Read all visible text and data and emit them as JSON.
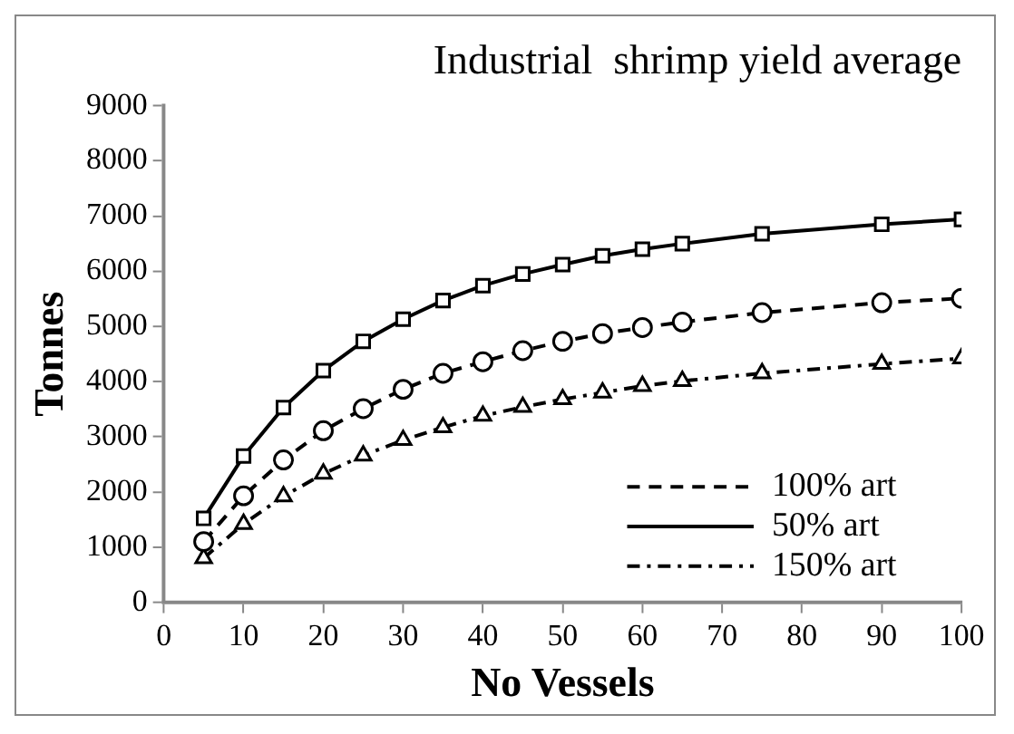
{
  "chart_data": {
    "type": "line",
    "title": "Industrial  shrimp yield average",
    "xlabel": "No Vessels",
    "ylabel": "Tonnes",
    "x": [
      5,
      10,
      15,
      20,
      25,
      30,
      35,
      40,
      45,
      50,
      55,
      60,
      65,
      75,
      90,
      100
    ],
    "series": [
      {
        "name": "100% art",
        "color": "#000000",
        "marker": "circle",
        "line_style": "dashed",
        "values": [
          1100,
          1930,
          2580,
          3110,
          3510,
          3860,
          4150,
          4360,
          4560,
          4730,
          4870,
          4980,
          5080,
          5250,
          5430,
          5510
        ]
      },
      {
        "name": "50% art",
        "color": "#000000",
        "marker": "square",
        "line_style": "solid",
        "values": [
          1520,
          2650,
          3530,
          4200,
          4730,
          5130,
          5470,
          5740,
          5950,
          6120,
          6280,
          6400,
          6500,
          6680,
          6850,
          6940
        ]
      },
      {
        "name": "150% art",
        "color": "#000000",
        "marker": "triangle",
        "line_style": "dotted",
        "values": [
          800,
          1420,
          1920,
          2330,
          2660,
          2940,
          3170,
          3380,
          3540,
          3680,
          3800,
          3920,
          4010,
          4150,
          4320,
          4420
        ]
      }
    ],
    "xlim": [
      0,
      100
    ],
    "xticks": [
      0,
      10,
      20,
      30,
      40,
      50,
      60,
      70,
      80,
      90,
      100
    ],
    "ylim": [
      0,
      9000
    ],
    "yticks": [
      0,
      1000,
      2000,
      3000,
      4000,
      5000,
      6000,
      7000,
      8000,
      9000
    ],
    "grid": false,
    "legend": "bottom right"
  }
}
